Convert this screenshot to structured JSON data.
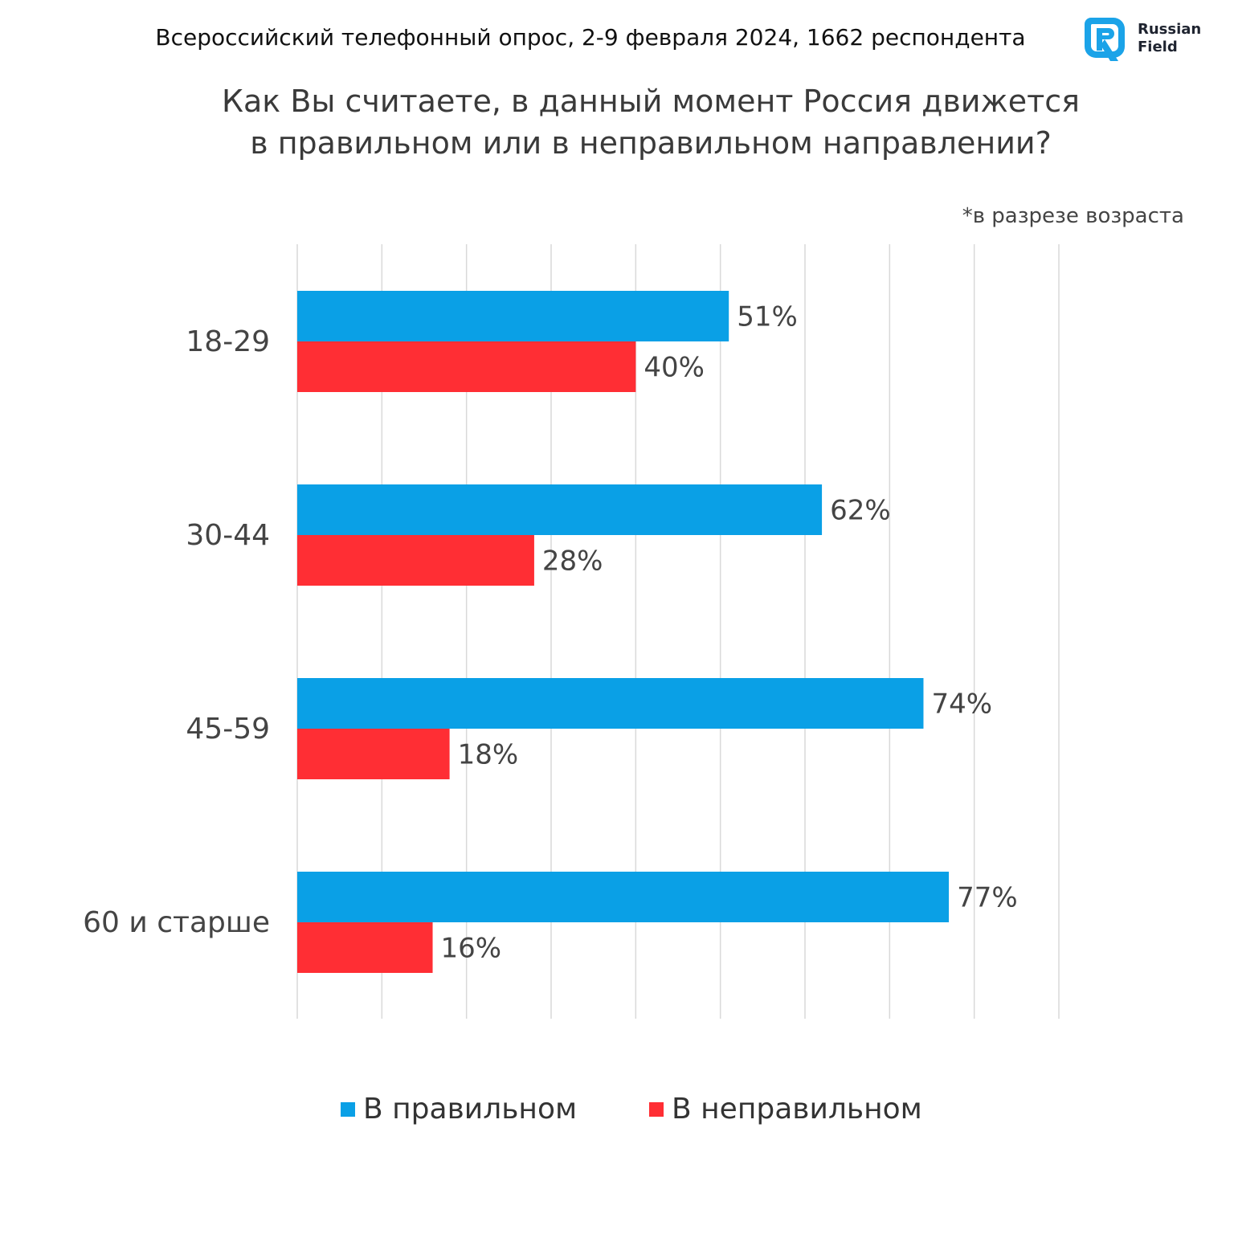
{
  "header": {
    "survey_info": "Всероссийский телефонный опрос, 2-9 февраля 2024, 1662 респондента",
    "logo": {
      "line1": "Russian",
      "line2": "Field",
      "icon": "russian-field-logo-icon",
      "color": "#1ba3e8"
    }
  },
  "question": {
    "line1": "Как Вы считаете, в данный момент Россия движется",
    "line2": "в правильном или в неправильном направлении?"
  },
  "note": "*в разрезе возраста",
  "colors": {
    "right": "#0aa0e6",
    "wrong": "#ff2e34",
    "grid": "#d9d9d9",
    "text": "#444444"
  },
  "chart_data": {
    "type": "bar",
    "orientation": "horizontal",
    "categories": [
      "18-29",
      "30-44",
      "45-59",
      "60 и старше"
    ],
    "series": [
      {
        "name": "В правильном",
        "values": [
          51,
          62,
          74,
          77
        ]
      },
      {
        "name": "В неправильном",
        "values": [
          40,
          28,
          18,
          16
        ]
      }
    ],
    "value_format": "%",
    "xlim": [
      0,
      90
    ],
    "grid": true,
    "legend": "bottom"
  }
}
